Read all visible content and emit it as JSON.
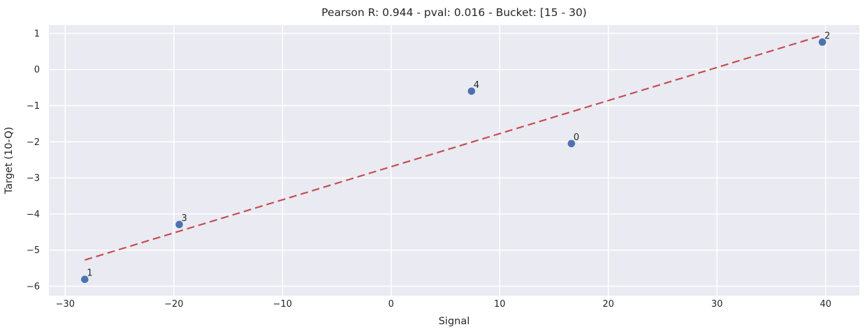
{
  "figure": {
    "title": "Pearson R: 0.944 - pval: 0.016 - Bucket: [15 - 30)",
    "stats": {
      "pearson_r": "0.944",
      "pval": "0.016",
      "bucket": "[15 - 30)"
    }
  },
  "chart_data": {
    "type": "scatter",
    "title": "Pearson R: 0.944 - pval: 0.016 - Bucket: [15 - 30)",
    "xlabel": "Signal",
    "ylabel": "Target (10-Q)",
    "xlim": [
      -31.5,
      43.1
    ],
    "ylim": [
      -6.26,
      1.23
    ],
    "grid": true,
    "legend": false,
    "xticks": {
      "values": [
        -30,
        -20,
        -10,
        0,
        10,
        20,
        30,
        40
      ],
      "labels": [
        "−30",
        "−20",
        "−10",
        "0",
        "10",
        "20",
        "30",
        "40"
      ]
    },
    "yticks": {
      "values": [
        1,
        0,
        -1,
        -2,
        -3,
        -4,
        -5,
        -6
      ],
      "labels": [
        "1",
        "0",
        "−1",
        "−2",
        "−3",
        "−4",
        "−5",
        "−6"
      ]
    },
    "points": [
      {
        "label": "0",
        "x": 16.6,
        "y": -2.05
      },
      {
        "label": "1",
        "x": -28.2,
        "y": -5.81
      },
      {
        "label": "2",
        "x": 39.7,
        "y": 0.76
      },
      {
        "label": "3",
        "x": -19.5,
        "y": -4.29
      },
      {
        "label": "4",
        "x": 7.4,
        "y": -0.6
      }
    ],
    "trendline": {
      "type": "linear",
      "style": "dashed",
      "slope": 0.0916,
      "intercept": -2.69,
      "x_start": -28.2,
      "x_end": 39.7
    },
    "colors": {
      "point": "#4c72b0",
      "trendline": "#c44e52",
      "plot_background": "#eaeaf2",
      "gridline": "#ffffff",
      "text": "#262626"
    }
  }
}
